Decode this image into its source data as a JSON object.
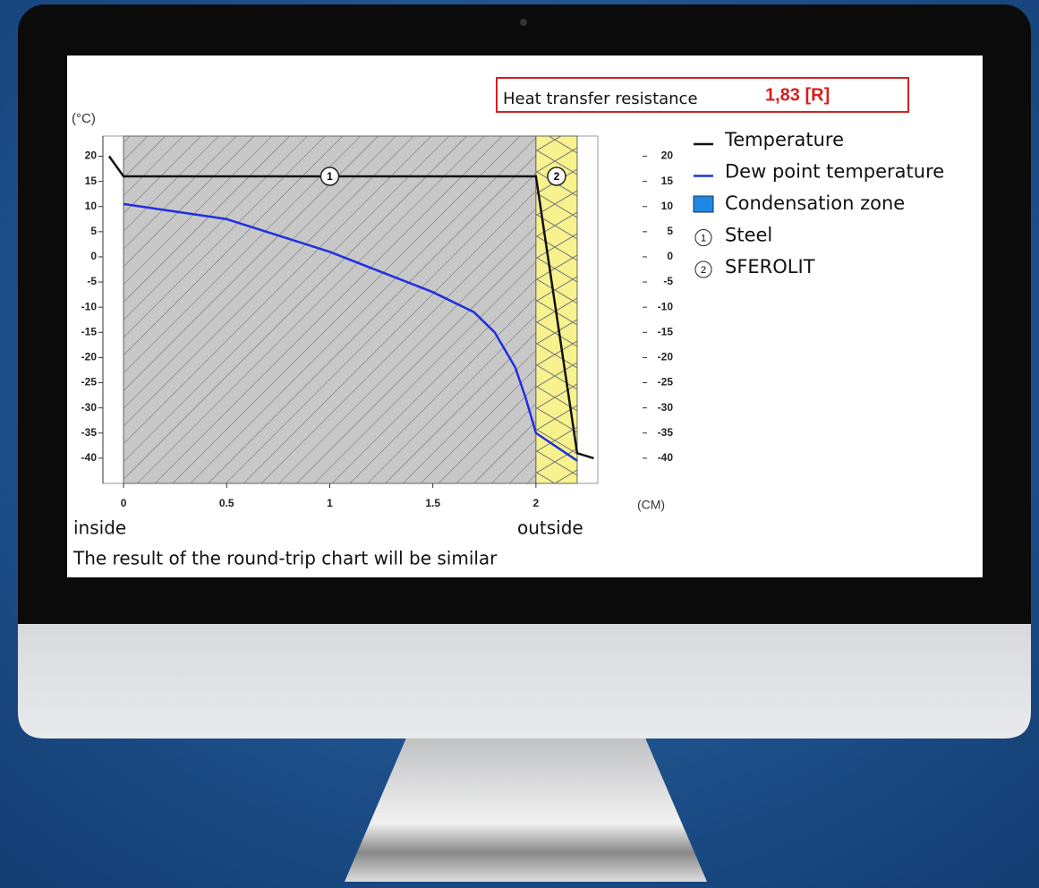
{
  "chart_data": {
    "type": "line",
    "resistance_label": "Heat transfer resistance",
    "resistance_value": "1,83 [R]",
    "ylabel": "(°C)",
    "xlabel": "(CM)",
    "inside_label": "inside",
    "outside_label": "outside",
    "note": "The result of the round-trip chart will be similar",
    "xlim": [
      -0.1,
      2.3
    ],
    "xticks": [
      0,
      0.5,
      1,
      1.5,
      2
    ],
    "ylim": [
      -45,
      24
    ],
    "yticks": [
      20,
      15,
      10,
      5,
      0,
      -5,
      -10,
      -15,
      -20,
      -25,
      -30,
      -35,
      -40
    ],
    "y2lim": [
      -45,
      24
    ],
    "y2ticks": [
      20,
      15,
      10,
      5,
      0,
      -5,
      -10,
      -15,
      -20,
      -25,
      -30,
      -35,
      -40
    ],
    "series": [
      {
        "name": "Temperature",
        "color": "#111111",
        "x": [
          -0.07,
          0,
          2,
          2.2,
          2.28
        ],
        "values": [
          20,
          16,
          16,
          -39,
          -40
        ]
      },
      {
        "name": "Dew point temperature",
        "color": "#1f2fe0",
        "x": [
          0,
          0.5,
          1,
          1.5,
          1.7,
          1.8,
          1.9,
          1.95,
          2,
          2.2
        ],
        "values": [
          10.5,
          7.5,
          1,
          -7,
          -11,
          -15,
          -22,
          -28,
          -35,
          -40.5
        ]
      }
    ],
    "legend_extra": [
      {
        "name": "Condensation zone",
        "color": "#1e88e5"
      }
    ],
    "layers": [
      {
        "number": 1,
        "name": "Steel",
        "x": [
          0,
          2
        ],
        "color": "#c8c8c8"
      },
      {
        "number": 2,
        "name": "SFEROLIT",
        "x": [
          2,
          2.2
        ],
        "color": "#f7f28e"
      }
    ]
  }
}
